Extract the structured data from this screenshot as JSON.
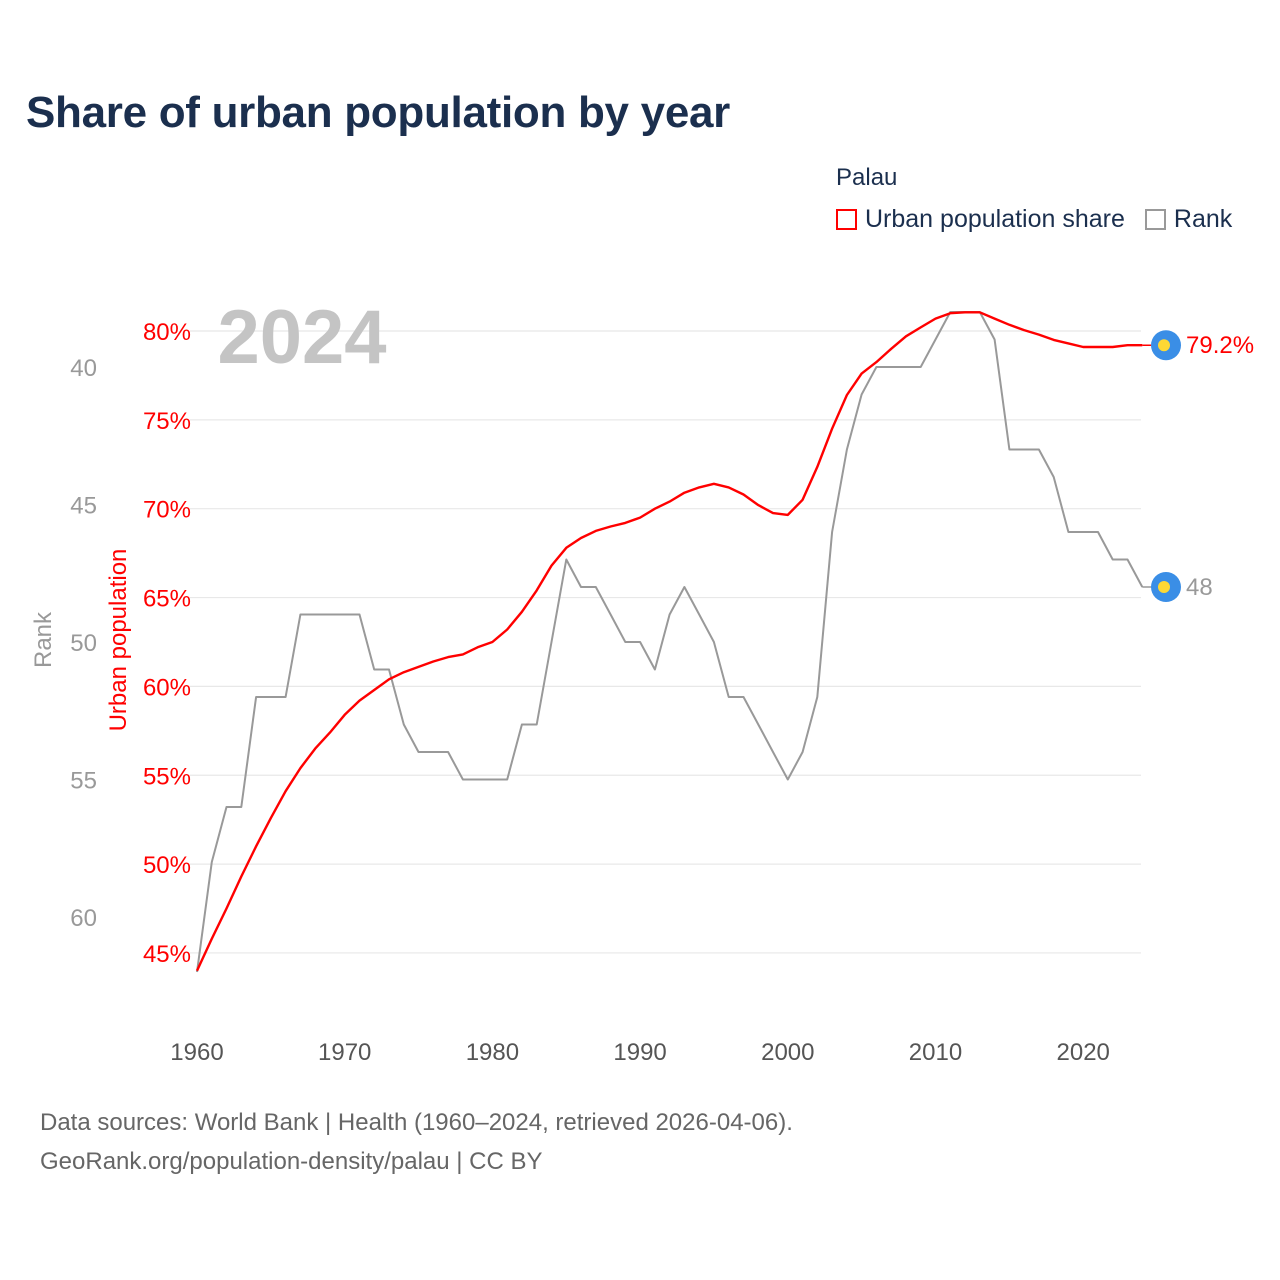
{
  "title": "Share of urban population by year",
  "legend": {
    "title": "Palau",
    "items": [
      {
        "label": "Urban population share",
        "color": "#ff0000"
      },
      {
        "label": "Rank",
        "color": "#999999"
      }
    ]
  },
  "footer": {
    "line1": "Data sources: World Bank | Health (1960–2024, retrieved 2026-04-06).",
    "line2": "GeoRank.org/population-density/palau | CC BY"
  },
  "chart_data": {
    "type": "line",
    "title": "Share of urban population by year",
    "watermark_year": "2024",
    "xlabel": "",
    "ylabel_left_outer": "Rank",
    "ylabel_left_inner": "Urban population",
    "x_ticks": [
      "1960",
      "1970",
      "1980",
      "1990",
      "2000",
      "2010",
      "2020"
    ],
    "x_tick_values": [
      1960,
      1970,
      1980,
      1990,
      2000,
      2010,
      2020
    ],
    "pct_ticks": [
      "45%",
      "50%",
      "55%",
      "60%",
      "65%",
      "70%",
      "75%",
      "80%"
    ],
    "pct_tick_values": [
      45,
      50,
      55,
      60,
      65,
      70,
      75,
      80
    ],
    "rank_ticks": [
      "40",
      "45",
      "50",
      "55",
      "60"
    ],
    "rank_tick_values": [
      40,
      45,
      50,
      55,
      60
    ],
    "xlim": [
      1960,
      2024
    ],
    "grid": true,
    "legend_position": "top-right",
    "x": [
      1960,
      1961,
      1962,
      1963,
      1964,
      1965,
      1966,
      1967,
      1968,
      1969,
      1970,
      1971,
      1972,
      1973,
      1974,
      1975,
      1976,
      1977,
      1978,
      1979,
      1980,
      1981,
      1982,
      1983,
      1984,
      1985,
      1986,
      1987,
      1988,
      1989,
      1990,
      1991,
      1992,
      1993,
      1994,
      1995,
      1996,
      1997,
      1998,
      1999,
      2000,
      2001,
      2002,
      2003,
      2004,
      2005,
      2006,
      2007,
      2008,
      2009,
      2010,
      2011,
      2012,
      2013,
      2014,
      2015,
      2016,
      2017,
      2018,
      2019,
      2020,
      2021,
      2022,
      2023,
      2024
    ],
    "series": [
      {
        "name": "Urban population share",
        "color": "#ff0000",
        "axis": "pct",
        "end_label": "79.2%",
        "values": [
          44.0,
          45.8,
          47.5,
          49.3,
          51.0,
          52.6,
          54.1,
          55.4,
          56.5,
          57.4,
          58.4,
          59.2,
          59.8,
          60.4,
          60.8,
          61.1,
          61.4,
          61.65,
          61.8,
          62.2,
          62.5,
          63.2,
          64.2,
          65.4,
          66.8,
          67.8,
          68.35,
          68.75,
          69.0,
          69.2,
          69.5,
          70.0,
          70.4,
          70.9,
          71.2,
          71.4,
          71.2,
          70.8,
          70.2,
          69.75,
          69.65,
          70.5,
          72.35,
          74.5,
          76.4,
          77.6,
          78.25,
          79.0,
          79.7,
          80.2,
          80.7,
          81.0,
          81.05,
          81.05,
          80.7,
          80.35,
          80.05,
          79.8,
          79.5,
          79.3,
          79.1,
          79.1,
          79.1,
          79.2,
          79.2
        ]
      },
      {
        "name": "Rank",
        "color": "#999999",
        "axis": "rank",
        "end_label": "48",
        "values": [
          62,
          58,
          56,
          56,
          52,
          52,
          52,
          49,
          49,
          49,
          49,
          49,
          51,
          51,
          53,
          54,
          54,
          54,
          55,
          55,
          55,
          55,
          53,
          53,
          50,
          47,
          48,
          48,
          49,
          50,
          50,
          51,
          49,
          48,
          49,
          50,
          52,
          52,
          53,
          54,
          55,
          54,
          52,
          46,
          43,
          41,
          40,
          40,
          40,
          40,
          39,
          38,
          38,
          38,
          39,
          43,
          43,
          43,
          44,
          46,
          46,
          46,
          47,
          47,
          48
        ]
      }
    ],
    "marker_colors": {
      "outer": "#3a8ee6",
      "inner": "#fdd835"
    }
  }
}
